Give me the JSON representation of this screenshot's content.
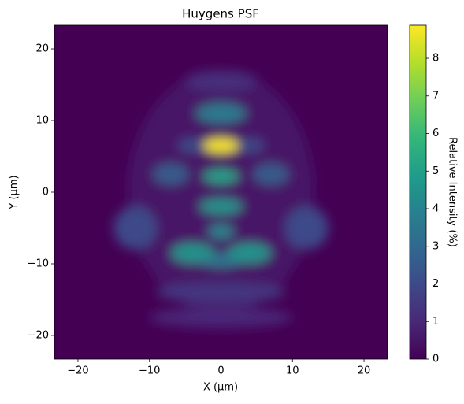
{
  "chart_data": {
    "type": "heatmap",
    "title": "Huygens PSF",
    "x_label": "X (µm)",
    "y_label": "Y (µm)",
    "colorbar_label": "Relative Intensity (%)",
    "xlim": [
      -23.3,
      23.3
    ],
    "ylim": [
      -23.3,
      23.3
    ],
    "xticks": [
      {
        "value": -20,
        "label": "−20"
      },
      {
        "value": -10,
        "label": "−10"
      },
      0,
      10,
      20
    ],
    "yticks": [
      {
        "value": -20,
        "label": "−20"
      },
      {
        "value": -10,
        "label": "−10"
      },
      0,
      10,
      20
    ],
    "clim": [
      0,
      8.88
    ],
    "cticks": [
      0,
      1,
      2,
      3,
      4,
      5,
      6,
      7,
      8
    ],
    "colormap": [
      "#440154",
      "#482878",
      "#3e4989",
      "#31688e",
      "#26828e",
      "#1f9e89",
      "#35b779",
      "#6ece58",
      "#b5de2b",
      "#fde725"
    ],
    "features": [
      {
        "x": 0,
        "y": 0,
        "rx": 13,
        "ry": 17,
        "value": 0.5
      },
      {
        "x": 0,
        "y": -14,
        "rx": 9,
        "ry": 1.5,
        "value": 1.4
      },
      {
        "x": 0,
        "y": -17.5,
        "rx": 10,
        "ry": 1.4,
        "value": 1.0
      },
      {
        "x": 0,
        "y": 15.5,
        "rx": 5,
        "ry": 1.5,
        "value": 1.2
      },
      {
        "x": -12,
        "y": -5,
        "rx": 3,
        "ry": 3,
        "value": 2.0
      },
      {
        "x": 12,
        "y": -5,
        "rx": 3,
        "ry": 3,
        "value": 2.0
      },
      {
        "x": -7,
        "y": 2.5,
        "rx": 2.5,
        "ry": 1.5,
        "value": 2.5
      },
      {
        "x": 7,
        "y": 2.5,
        "rx": 2.5,
        "ry": 1.5,
        "value": 2.5
      },
      {
        "x": 0,
        "y": 11,
        "rx": 3.5,
        "ry": 1.4,
        "value": 3.6
      },
      {
        "x": -4,
        "y": 6.5,
        "rx": 2,
        "ry": 1,
        "value": 2.0
      },
      {
        "x": 4,
        "y": 6.5,
        "rx": 2,
        "ry": 1,
        "value": 2.0
      },
      {
        "x": 0,
        "y": -9.5,
        "rx": 3,
        "ry": 1,
        "value": 3.5
      },
      {
        "x": -4,
        "y": -8.5,
        "rx": 3,
        "ry": 1.4,
        "value": 4.5
      },
      {
        "x": 4,
        "y": -8.5,
        "rx": 3,
        "ry": 1.4,
        "value": 4.5
      },
      {
        "x": 0,
        "y": -5.5,
        "rx": 1.8,
        "ry": 1,
        "value": 4.0
      },
      {
        "x": 0,
        "y": -2,
        "rx": 3,
        "ry": 1.1,
        "value": 4.5
      },
      {
        "x": 0,
        "y": 2.2,
        "rx": 2.5,
        "ry": 1,
        "value": 5.0
      },
      {
        "x": 0,
        "y": 6.5,
        "rx": 2.5,
        "ry": 1,
        "value": 8.8
      }
    ]
  }
}
